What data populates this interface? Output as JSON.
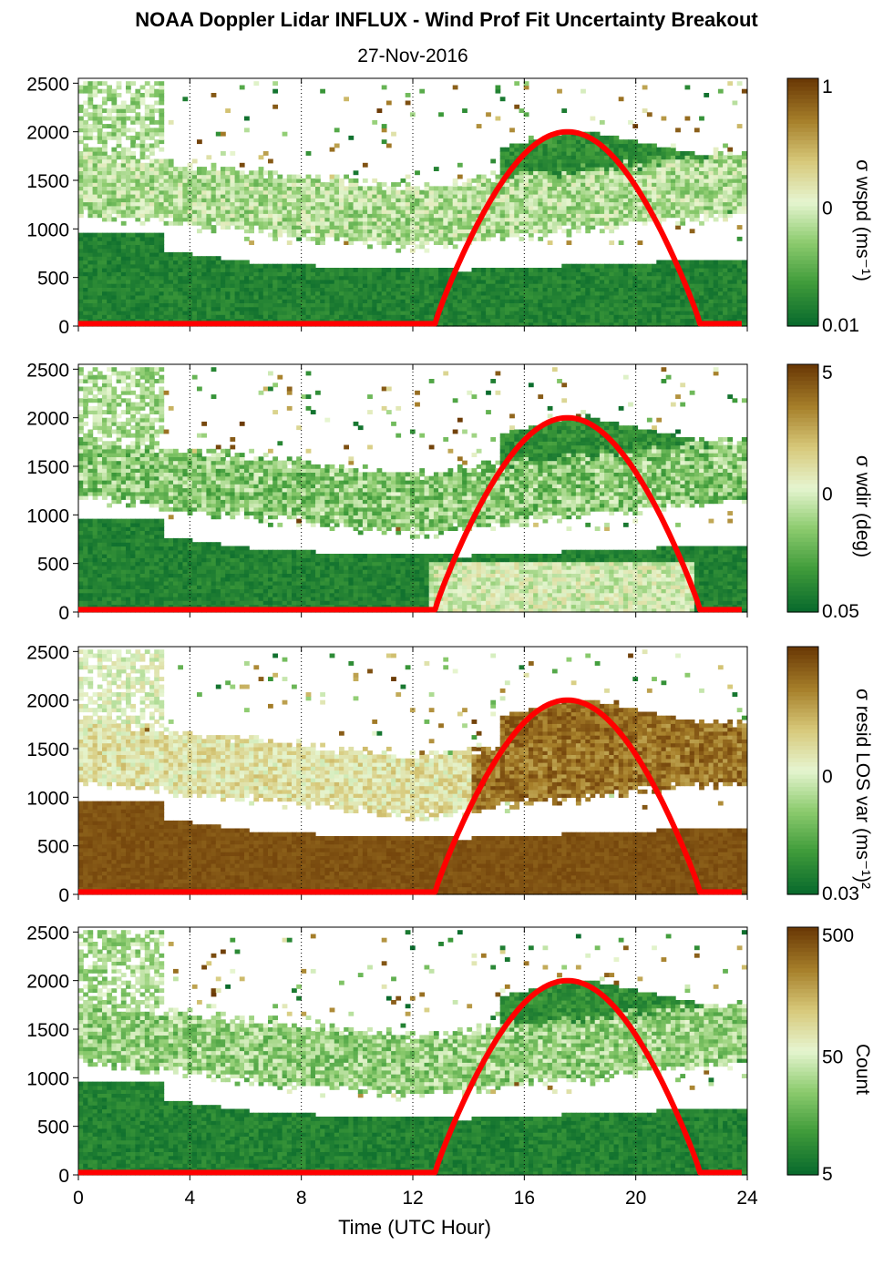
{
  "title": "NOAA Doppler Lidar INFLUX - Wind Prof Fit Uncertainty Breakout",
  "subtitle": "27-Nov-2016",
  "xlabel": "Time (UTC Hour)",
  "colors": {
    "sun_curve": "#ff0000",
    "colormap": [
      "#0a6b2d",
      "#3f9b3a",
      "#8ccb6e",
      "#e6f5d0",
      "#d7c97a",
      "#a67f2a",
      "#6b3a06"
    ]
  },
  "chart_data": [
    {
      "type": "heatmap",
      "panel": 1,
      "colorbar_label": "σ wspd (ms⁻¹)",
      "colorbar_ticks": [
        "1",
        "0",
        "0.01"
      ],
      "x_ticks": [
        0,
        4,
        8,
        12,
        16,
        20,
        24
      ],
      "y_ticks": [
        0,
        500,
        1000,
        1500,
        2000,
        2500
      ],
      "xlim": [
        0,
        24
      ],
      "ylim": [
        0,
        2550
      ],
      "sun_curve": {
        "start_hour": 12.8,
        "end_hour": 22.3,
        "peak_hour": 17.5,
        "peak_value": 2000,
        "base_value": 25
      }
    },
    {
      "type": "heatmap",
      "panel": 2,
      "colorbar_label": "σ wdir (deg)",
      "colorbar_ticks": [
        "5",
        "0",
        "0.05"
      ],
      "x_ticks": [
        0,
        4,
        8,
        12,
        16,
        20,
        24
      ],
      "y_ticks": [
        0,
        500,
        1000,
        1500,
        2000,
        2500
      ],
      "xlim": [
        0,
        24
      ],
      "ylim": [
        0,
        2550
      ],
      "sun_curve": {
        "start_hour": 12.8,
        "end_hour": 22.3,
        "peak_hour": 17.5,
        "peak_value": 2000,
        "base_value": 25
      }
    },
    {
      "type": "heatmap",
      "panel": 3,
      "colorbar_label": "σ resid LOS var (ms⁻¹)²",
      "colorbar_ticks": [
        "",
        "0",
        "0.03"
      ],
      "x_ticks": [
        0,
        4,
        8,
        12,
        16,
        20,
        24
      ],
      "y_ticks": [
        0,
        500,
        1000,
        1500,
        2000,
        2500
      ],
      "xlim": [
        0,
        24
      ],
      "ylim": [
        0,
        2550
      ],
      "sun_curve": {
        "start_hour": 12.8,
        "end_hour": 22.3,
        "peak_hour": 17.5,
        "peak_value": 2000,
        "base_value": 25
      }
    },
    {
      "type": "heatmap",
      "panel": 4,
      "colorbar_label": "Count",
      "colorbar_ticks": [
        "500",
        "50",
        "5"
      ],
      "x_ticks": [
        0,
        4,
        8,
        12,
        16,
        20,
        24
      ],
      "y_ticks": [
        0,
        500,
        1000,
        1500,
        2000,
        2500
      ],
      "xlim": [
        0,
        24
      ],
      "ylim": [
        0,
        2550
      ],
      "sun_curve": {
        "start_hour": 12.8,
        "end_hour": 22.3,
        "peak_hour": 17.5,
        "peak_value": 2000,
        "base_value": 25
      }
    }
  ]
}
